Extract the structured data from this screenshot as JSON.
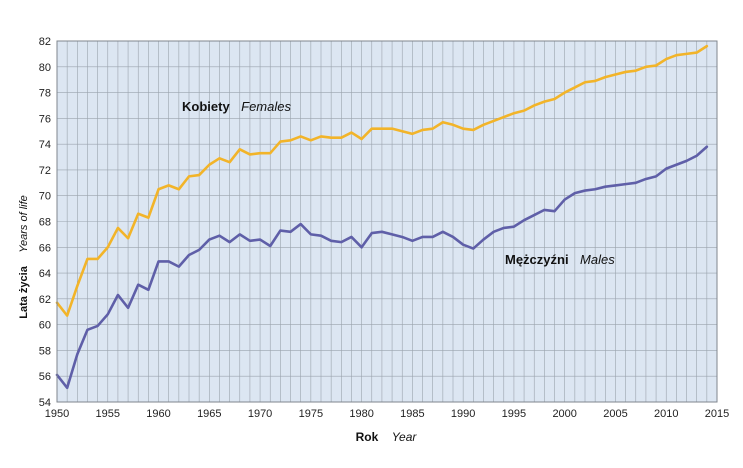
{
  "chart_data": {
    "type": "line",
    "title": "",
    "xlabel": "Rok",
    "xlabel_secondary": "Year",
    "ylabel": "Lata życia",
    "ylabel_secondary": "Years of life",
    "xlim": [
      1950,
      2015
    ],
    "ylim": [
      54,
      82
    ],
    "xticks": [
      1950,
      1955,
      1960,
      1965,
      1970,
      1975,
      1980,
      1985,
      1990,
      1995,
      2000,
      2005,
      2010,
      2015
    ],
    "yticks": [
      54,
      56,
      58,
      60,
      62,
      64,
      66,
      68,
      70,
      72,
      74,
      76,
      78,
      80,
      82
    ],
    "grid": true,
    "legend": "inline annotations",
    "colors": {
      "plot_bg": "#dce6f2",
      "grid": "#9aa3ad",
      "females": "#f2b429",
      "males": "#5f5fa8"
    },
    "x": [
      1950,
      1951,
      1952,
      1953,
      1954,
      1955,
      1956,
      1957,
      1958,
      1959,
      1960,
      1961,
      1962,
      1963,
      1964,
      1965,
      1966,
      1967,
      1968,
      1969,
      1970,
      1971,
      1972,
      1973,
      1974,
      1975,
      1976,
      1977,
      1978,
      1979,
      1980,
      1981,
      1982,
      1983,
      1984,
      1985,
      1986,
      1987,
      1988,
      1989,
      1990,
      1991,
      1992,
      1993,
      1994,
      1995,
      1996,
      1997,
      1998,
      1999,
      2000,
      2001,
      2002,
      2003,
      2004,
      2005,
      2006,
      2007,
      2008,
      2009,
      2010,
      2011,
      2012,
      2013,
      2014
    ],
    "series": [
      {
        "name": "Kobiety",
        "name_secondary": "Females",
        "values": [
          61.7,
          60.7,
          63.0,
          65.1,
          65.1,
          66.0,
          67.5,
          66.7,
          68.6,
          68.3,
          70.5,
          70.8,
          70.5,
          71.5,
          71.6,
          72.4,
          72.9,
          72.6,
          73.6,
          73.2,
          73.3,
          73.3,
          74.2,
          74.3,
          74.6,
          74.3,
          74.6,
          74.5,
          74.5,
          74.9,
          74.4,
          75.2,
          75.2,
          75.2,
          75.0,
          74.8,
          75.1,
          75.2,
          75.7,
          75.5,
          75.2,
          75.1,
          75.5,
          75.8,
          76.1,
          76.4,
          76.6,
          77.0,
          77.3,
          77.5,
          78.0,
          78.4,
          78.8,
          78.9,
          79.2,
          79.4,
          79.6,
          79.7,
          80.0,
          80.1,
          80.6,
          80.9,
          81.0,
          81.1,
          81.6
        ]
      },
      {
        "name": "Mężczyźni",
        "name_secondary": "Males",
        "values": [
          56.1,
          55.1,
          57.7,
          59.6,
          59.9,
          60.8,
          62.3,
          61.3,
          63.1,
          62.7,
          64.9,
          64.9,
          64.5,
          65.4,
          65.8,
          66.6,
          66.9,
          66.4,
          67.0,
          66.5,
          66.6,
          66.1,
          67.3,
          67.2,
          67.8,
          67.0,
          66.9,
          66.5,
          66.4,
          66.8,
          66.0,
          67.1,
          67.2,
          67.0,
          66.8,
          66.5,
          66.8,
          66.8,
          67.2,
          66.8,
          66.2,
          65.9,
          66.6,
          67.2,
          67.5,
          67.6,
          68.1,
          68.5,
          68.9,
          68.8,
          69.7,
          70.2,
          70.4,
          70.5,
          70.7,
          70.8,
          70.9,
          71.0,
          71.3,
          71.5,
          72.1,
          72.4,
          72.7,
          73.1,
          73.8
        ]
      }
    ],
    "annotations": [
      {
        "series": "Kobiety",
        "bold": "Kobiety",
        "italic": "Females"
      },
      {
        "series": "Mężczyźni",
        "bold": "Mężczyźni",
        "italic": "Males"
      }
    ]
  }
}
